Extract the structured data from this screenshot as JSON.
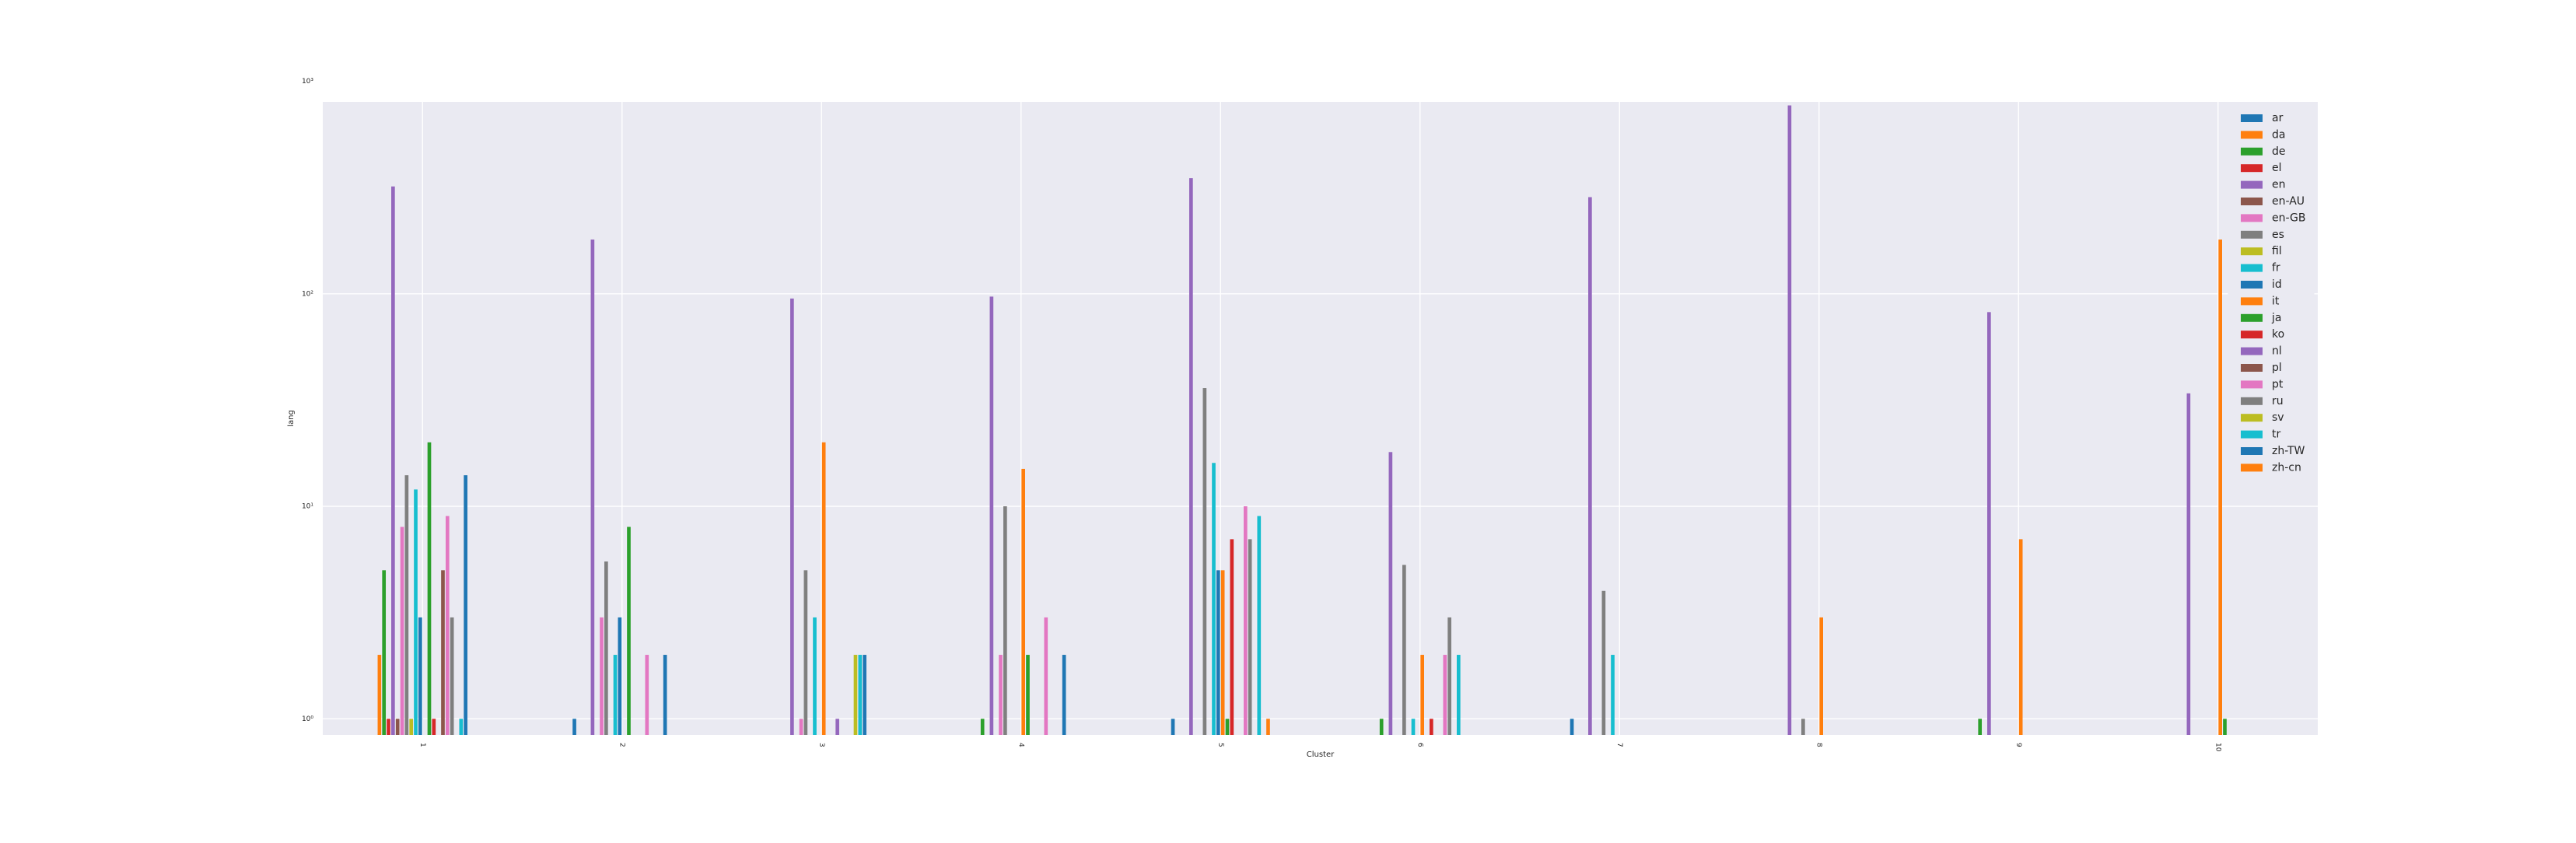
{
  "chart_data": {
    "type": "bar",
    "title": "",
    "xlabel": "Cluster",
    "ylabel": "lang",
    "yscale": "log",
    "ylim": [
      0.84,
      800
    ],
    "yticks": [
      1,
      10,
      100,
      1000
    ],
    "ytick_labels": [
      "10⁰",
      "10¹",
      "10²",
      "10³"
    ],
    "categories": [
      "1",
      "2",
      "3",
      "4",
      "5",
      "6",
      "7",
      "8",
      "9",
      "10"
    ],
    "grid": true,
    "legend_position": "upper-right",
    "series": [
      {
        "name": "ar",
        "color": "#1f77b4",
        "values": [
          null,
          1,
          null,
          null,
          1,
          null,
          1,
          null,
          null,
          null
        ]
      },
      {
        "name": "da",
        "color": "#ff7f0e",
        "values": [
          2,
          null,
          null,
          null,
          null,
          null,
          null,
          null,
          null,
          null
        ]
      },
      {
        "name": "de",
        "color": "#2ca02c",
        "values": [
          5,
          null,
          null,
          1,
          null,
          1,
          null,
          null,
          1,
          null
        ]
      },
      {
        "name": "el",
        "color": "#d62728",
        "values": [
          1,
          null,
          null,
          null,
          null,
          null,
          null,
          null,
          null,
          null
        ]
      },
      {
        "name": "en",
        "color": "#9467bd",
        "values": [
          320,
          180,
          95,
          97,
          350,
          18,
          285,
          770,
          82,
          34
        ]
      },
      {
        "name": "en-AU",
        "color": "#8c564b",
        "values": [
          1,
          null,
          null,
          null,
          null,
          null,
          null,
          null,
          null,
          null
        ]
      },
      {
        "name": "en-GB",
        "color": "#e377c2",
        "values": [
          8,
          3,
          1,
          2,
          null,
          null,
          null,
          null,
          null,
          null
        ]
      },
      {
        "name": "es",
        "color": "#7f7f7f",
        "values": [
          14,
          5.5,
          5,
          10,
          36,
          5.3,
          4,
          1,
          null,
          null
        ]
      },
      {
        "name": "fil",
        "color": "#bcbd22",
        "values": [
          1,
          null,
          null,
          null,
          null,
          null,
          null,
          null,
          null,
          null
        ]
      },
      {
        "name": "fr",
        "color": "#17becf",
        "values": [
          12,
          2,
          3,
          null,
          16,
          1,
          2,
          null,
          null,
          null
        ]
      },
      {
        "name": "id",
        "color": "#1f77b4",
        "values": [
          3,
          3,
          null,
          null,
          5,
          null,
          null,
          null,
          null,
          null
        ]
      },
      {
        "name": "it",
        "color": "#ff7f0e",
        "values": [
          null,
          null,
          20,
          15,
          5,
          2,
          null,
          3,
          7,
          180
        ]
      },
      {
        "name": "ja",
        "color": "#2ca02c",
        "values": [
          20,
          8,
          null,
          2,
          1,
          null,
          null,
          null,
          null,
          1
        ]
      },
      {
        "name": "ko",
        "color": "#d62728",
        "values": [
          1,
          null,
          null,
          null,
          7,
          1,
          null,
          null,
          null,
          null
        ]
      },
      {
        "name": "nl",
        "color": "#9467bd",
        "values": [
          null,
          null,
          1,
          null,
          null,
          null,
          null,
          null,
          null,
          null
        ]
      },
      {
        "name": "pl",
        "color": "#8c564b",
        "values": [
          5,
          null,
          null,
          null,
          null,
          null,
          null,
          null,
          null,
          null
        ]
      },
      {
        "name": "pt",
        "color": "#e377c2",
        "values": [
          9,
          2,
          null,
          3,
          10,
          2,
          null,
          null,
          null,
          null
        ]
      },
      {
        "name": "ru",
        "color": "#7f7f7f",
        "values": [
          3,
          null,
          null,
          null,
          7,
          3,
          null,
          null,
          null,
          null
        ]
      },
      {
        "name": "sv",
        "color": "#bcbd22",
        "values": [
          null,
          null,
          2,
          null,
          null,
          null,
          null,
          null,
          null,
          null
        ]
      },
      {
        "name": "tr",
        "color": "#17becf",
        "values": [
          1,
          null,
          2,
          null,
          9,
          2,
          null,
          null,
          null,
          null
        ]
      },
      {
        "name": "zh-TW",
        "color": "#1f77b4",
        "values": [
          14,
          2,
          2,
          2,
          null,
          null,
          null,
          null,
          null,
          null
        ]
      },
      {
        "name": "zh-cn",
        "color": "#ff7f0e",
        "values": [
          null,
          null,
          null,
          null,
          1,
          null,
          null,
          null,
          null,
          null
        ]
      }
    ]
  }
}
